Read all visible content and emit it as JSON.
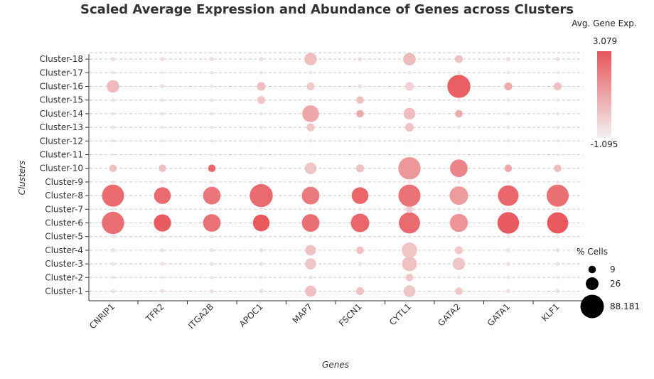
{
  "chart_data": {
    "type": "dot",
    "title": "Scaled Average Expression and Abundance of Genes across Clusters",
    "xlabel": "Genes",
    "ylabel": "Clusters",
    "genes": [
      "CNRIP1",
      "TFR2",
      "ITGA2B",
      "APOC1",
      "MAP7",
      "FSCN1",
      "CYTL1",
      "GATA2",
      "GATA1",
      "KLF1"
    ],
    "clusters": [
      "Cluster-1",
      "Cluster-2",
      "Cluster-3",
      "Cluster-4",
      "Cluster-5",
      "Cluster-6",
      "Cluster-7",
      "Cluster-8",
      "Cluster-9",
      "Cluster-10",
      "Cluster-11",
      "Cluster-12",
      "Cluster-13",
      "Cluster-14",
      "Cluster-15",
      "Cluster-16",
      "Cluster-17",
      "Cluster-18"
    ],
    "color_legend": {
      "title": "Avg. Gene Exp.",
      "max_label": "3.079",
      "min_label": "-1.095",
      "max": 3.079,
      "min": -1.095,
      "low_color": "#f2f2f2",
      "high_color": "#e8555a"
    },
    "size_legend": {
      "title": "% Cells",
      "items": [
        {
          "label": "9",
          "value": 9
        },
        {
          "label": "26",
          "value": 26
        },
        {
          "label": "88.181",
          "value": 88.181
        }
      ],
      "max": 88.181
    },
    "grid": true,
    "expression": [
      [
        -0.6,
        -0.6,
        -0.6,
        -0.6,
        0.3,
        0.2,
        0.1,
        0.0,
        -0.6,
        -0.6
      ],
      [
        -0.7,
        -0.7,
        -0.7,
        -0.7,
        -0.6,
        -0.7,
        0.0,
        -0.7,
        -0.7,
        -0.7
      ],
      [
        -0.7,
        -0.7,
        -0.7,
        -0.7,
        0.1,
        -0.7,
        0.2,
        0.1,
        -0.7,
        -0.7
      ],
      [
        -0.7,
        -0.7,
        -0.7,
        -0.7,
        0.2,
        0.2,
        0.1,
        0.0,
        -0.7,
        -0.7
      ],
      [
        -0.7,
        -0.7,
        -0.7,
        -0.7,
        -0.7,
        -0.7,
        -0.7,
        -0.7,
        -0.7,
        -0.7
      ],
      [
        2.4,
        2.9,
        2.3,
        3.0,
        2.4,
        2.6,
        2.5,
        1.4,
        2.9,
        3.0
      ],
      [
        -0.7,
        -0.7,
        -0.7,
        -0.7,
        -0.7,
        -0.7,
        -0.2,
        -0.7,
        -0.7,
        -0.7
      ],
      [
        2.5,
        2.5,
        2.2,
        2.5,
        2.1,
        2.6,
        2.3,
        1.2,
        2.6,
        2.4
      ],
      [
        -0.7,
        -0.7,
        -0.7,
        -0.7,
        -0.7,
        -0.7,
        -0.7,
        -0.7,
        -0.7,
        -0.7
      ],
      [
        0.3,
        0.2,
        2.6,
        -0.6,
        0.1,
        0.2,
        1.3,
        1.8,
        0.9,
        0.4
      ],
      [
        -0.7,
        -0.7,
        -0.7,
        -0.7,
        -0.7,
        -0.7,
        -0.7,
        -0.7,
        -0.7,
        -0.7
      ],
      [
        -0.7,
        -0.7,
        -0.7,
        -0.7,
        -0.7,
        -0.7,
        -0.7,
        -0.7,
        -0.7,
        -0.7
      ],
      [
        -0.7,
        -0.7,
        -0.7,
        -0.7,
        0.1,
        -0.7,
        0.1,
        -0.7,
        -0.7,
        -0.7
      ],
      [
        -0.7,
        -0.7,
        -0.7,
        -0.7,
        0.9,
        0.8,
        0.3,
        0.8,
        -0.7,
        -0.7
      ],
      [
        -0.7,
        -0.7,
        -0.7,
        0.1,
        -0.7,
        0.3,
        -0.7,
        -0.7,
        -0.7,
        -0.7
      ],
      [
        0.4,
        -0.6,
        -0.7,
        0.3,
        0.0,
        -0.6,
        -0.2,
        2.8,
        0.8,
        0.3
      ],
      [
        -0.7,
        -0.7,
        -0.7,
        -0.6,
        -0.7,
        -0.7,
        -0.7,
        -0.7,
        -0.7,
        -0.7
      ],
      [
        -0.6,
        -0.6,
        -0.6,
        -0.6,
        0.3,
        -0.6,
        0.4,
        0.2,
        -0.6,
        -0.6
      ]
    ],
    "pct_cells": [
      [
        3,
        3,
        3,
        3,
        20,
        10,
        22,
        9,
        3,
        3
      ],
      [
        2,
        2,
        2,
        2,
        2,
        2,
        9,
        2,
        2,
        2
      ],
      [
        3,
        3,
        3,
        3,
        20,
        3,
        35,
        25,
        3,
        3
      ],
      [
        3,
        3,
        3,
        3,
        18,
        9,
        38,
        10,
        3,
        3
      ],
      [
        2,
        2,
        2,
        2,
        2,
        2,
        2,
        2,
        2,
        2
      ],
      [
        80,
        48,
        50,
        45,
        50,
        55,
        72,
        52,
        75,
        72
      ],
      [
        2,
        2,
        2,
        2,
        2,
        2,
        9,
        2,
        2,
        2
      ],
      [
        78,
        45,
        50,
        85,
        50,
        45,
        78,
        55,
        68,
        78
      ],
      [
        2,
        2,
        2,
        2,
        2,
        2,
        2,
        2,
        2,
        2
      ],
      [
        9,
        9,
        9,
        2,
        22,
        10,
        80,
        50,
        9,
        9
      ],
      [
        1,
        1,
        1,
        1,
        1,
        1,
        1,
        1,
        1,
        1
      ],
      [
        2,
        2,
        2,
        2,
        2,
        2,
        2,
        2,
        2,
        2
      ],
      [
        2,
        2,
        2,
        2,
        10,
        2,
        12,
        2,
        2,
        2
      ],
      [
        2,
        2,
        2,
        2,
        45,
        9,
        22,
        9,
        2,
        2
      ],
      [
        2,
        2,
        2,
        10,
        2,
        9,
        2,
        2,
        2,
        2
      ],
      [
        25,
        3,
        2,
        12,
        10,
        3,
        12,
        85,
        10,
        10
      ],
      [
        2,
        2,
        2,
        2,
        2,
        1,
        2,
        2,
        2,
        2
      ],
      [
        3,
        3,
        3,
        3,
        25,
        3,
        25,
        10,
        3,
        3
      ]
    ]
  }
}
